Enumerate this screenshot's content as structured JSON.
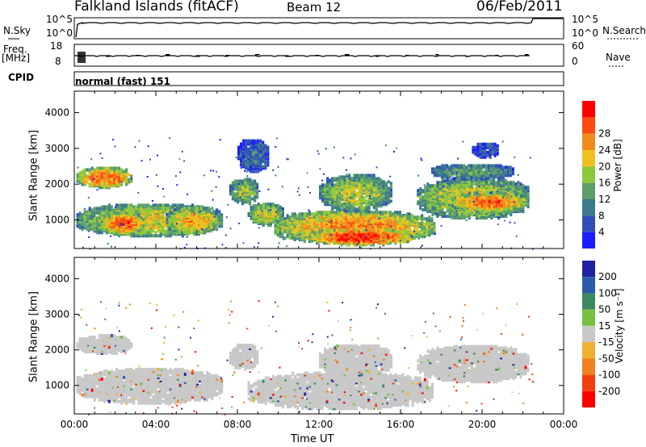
{
  "header": {
    "station": "Falkland Islands (fitACF)",
    "beam": "Beam 12",
    "date": "06/Feb/2011"
  },
  "strip_labels": {
    "nsky": "N.Sky",
    "nsearch": "N.Search",
    "freq": "Freq.",
    "freq_unit": "[MHz]",
    "nave": "Nave",
    "cpid": "CPID",
    "cpid_value": "normal (fast) 151"
  },
  "strip_ticks": {
    "n_top": "10^5",
    "n_bottom": "10^0",
    "freq_top": "18",
    "freq_bottom": "8",
    "nave_top": "60",
    "nave_bottom": "0"
  },
  "chart_data": [
    {
      "type": "heatmap",
      "quantity": "Power",
      "ylabel": "Slant Range [km]",
      "xlabel": "",
      "colorbar_label": "Power [dB]",
      "yticks": [
        "1000",
        "2000",
        "3000",
        "4000"
      ],
      "xticks": [],
      "ylim": [
        200,
        4600
      ],
      "xlim_hours": [
        0,
        24
      ],
      "colorbar_ticks": [
        "4",
        "8",
        "12",
        "16",
        "20",
        "24",
        "28"
      ],
      "colorbar_colors": [
        "#1c1cff",
        "#2f4fb8",
        "#3a7a8a",
        "#5b9e6a",
        "#8cc83c",
        "#f0c020",
        "#f08c1c",
        "#ff4a10",
        "#ff0000"
      ],
      "regions": [
        {
          "t0": 0.1,
          "t1": 2.8,
          "r0": 1950,
          "r1": 2500,
          "level": 0.8
        },
        {
          "t0": 0.1,
          "t1": 7.3,
          "r0": 600,
          "r1": 1500,
          "level": 0.6
        },
        {
          "t0": 1.3,
          "t1": 3.4,
          "r0": 650,
          "r1": 1250,
          "level": 0.85
        },
        {
          "t0": 4.5,
          "t1": 7.0,
          "r0": 650,
          "r1": 1400,
          "level": 0.7
        },
        {
          "t0": 7.6,
          "t1": 9.0,
          "r0": 1500,
          "r1": 2200,
          "level": 0.5
        },
        {
          "t0": 8.5,
          "t1": 10.2,
          "r0": 900,
          "r1": 1500,
          "level": 0.6
        },
        {
          "t0": 9.8,
          "t1": 17.6,
          "r0": 400,
          "r1": 1300,
          "level": 0.75
        },
        {
          "t0": 11.5,
          "t1": 16.5,
          "r0": 350,
          "r1": 800,
          "level": 0.92
        },
        {
          "t0": 12.0,
          "t1": 15.5,
          "r0": 1300,
          "r1": 2300,
          "level": 0.55
        },
        {
          "t0": 16.8,
          "t1": 22.3,
          "r0": 1100,
          "r1": 2200,
          "level": 0.6
        },
        {
          "t0": 18.5,
          "t1": 22.2,
          "r0": 1300,
          "r1": 1800,
          "level": 0.8
        },
        {
          "t0": 17.5,
          "t1": 21.5,
          "r0": 2200,
          "r1": 2600,
          "level": 0.4
        },
        {
          "t0": 19.5,
          "t1": 20.8,
          "r0": 2800,
          "r1": 3200,
          "level": 0.2
        },
        {
          "t0": 8.0,
          "t1": 9.5,
          "r0": 2400,
          "r1": 3300,
          "level": 0.25
        }
      ]
    },
    {
      "type": "heatmap",
      "quantity": "Velocity",
      "ylabel": "Slant Range [km]",
      "xlabel": "Time UT",
      "colorbar_label": "Velocity [m s⁻¹]",
      "yticks": [
        "1000",
        "2000",
        "3000",
        "4000"
      ],
      "xticks": [
        "00:00",
        "04:00",
        "08:00",
        "12:00",
        "16:00",
        "20:00",
        "00:00"
      ],
      "ylim": [
        200,
        4600
      ],
      "xlim_hours": [
        0,
        24
      ],
      "colorbar_ticks": [
        "200",
        "100",
        "50",
        "15",
        "-15",
        "-50",
        "-100",
        "-200"
      ],
      "colorbar_colors": [
        "#2020a0",
        "#2c5ca8",
        "#3a8a60",
        "#78c040",
        "#c8c8c8",
        "#f0b030",
        "#f08020",
        "#f04010",
        "#ff0000"
      ],
      "regions": [
        {
          "t0": 0.1,
          "t1": 2.8,
          "r0": 1950,
          "r1": 2450,
          "level": 0.5
        },
        {
          "t0": 0.1,
          "t1": 7.3,
          "r0": 550,
          "r1": 1500,
          "level": 0.5
        },
        {
          "t0": 8.5,
          "t1": 17.6,
          "r0": 400,
          "r1": 1400,
          "level": 0.5
        },
        {
          "t0": 12.0,
          "t1": 15.5,
          "r0": 1300,
          "r1": 2200,
          "level": 0.5
        },
        {
          "t0": 16.8,
          "t1": 22.3,
          "r0": 1150,
          "r1": 2150,
          "level": 0.5
        },
        {
          "t0": 7.6,
          "t1": 9.0,
          "r0": 1500,
          "r1": 2200,
          "level": 0.5
        }
      ]
    }
  ]
}
